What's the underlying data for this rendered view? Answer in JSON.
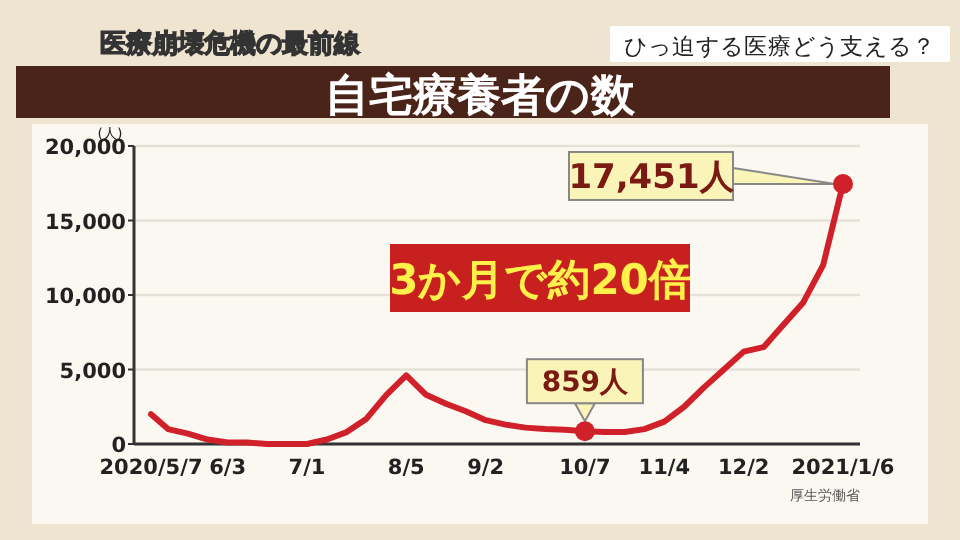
{
  "chart_data": {
    "type": "line",
    "title": "自宅療養者の数",
    "ylabel": "(人)",
    "annotations": [
      "医療崩壊危機の最前線",
      "ひっ迫する医療どう支える？",
      "3か月で約20倍",
      "厚生労働省",
      {
        "text": "17,451人",
        "x": "2021-01-06",
        "y": 17451
      },
      {
        "text": "859人",
        "x": "2020-10-07",
        "y": 859
      }
    ],
    "x": [
      "2020-05-07",
      "2020-05-13",
      "2020-05-20",
      "2020-05-27",
      "2020-06-03",
      "2020-06-10",
      "2020-06-17",
      "2020-06-24",
      "2020-07-01",
      "2020-07-08",
      "2020-07-15",
      "2020-07-22",
      "2020-07-29",
      "2020-08-05",
      "2020-08-12",
      "2020-08-19",
      "2020-08-26",
      "2020-09-02",
      "2020-09-09",
      "2020-09-16",
      "2020-09-23",
      "2020-09-30",
      "2020-10-07",
      "2020-10-14",
      "2020-10-21",
      "2020-10-28",
      "2020-11-04",
      "2020-11-11",
      "2020-11-18",
      "2020-11-25",
      "2020-12-02",
      "2020-12-09",
      "2020-12-16",
      "2020-12-23",
      "2020-12-30",
      "2021-01-06"
    ],
    "series": [
      {
        "color": "#d0202a",
        "values": [
          2000,
          1000,
          700,
          300,
          100,
          100,
          0,
          0,
          0,
          300,
          800,
          1700,
          3300,
          4600,
          3300,
          2700,
          2200,
          1600,
          1300,
          1100,
          1000,
          950,
          859,
          800,
          800,
          1000,
          1500,
          2500,
          3800,
          5000,
          6200,
          6500,
          8000,
          9500,
          12000,
          17451
        ]
      }
    ],
    "xlim": [
      "2020-05-01",
      "2021-01-12"
    ],
    "ylim": [
      0,
      20000
    ],
    "yticks": [
      {
        "value": 0,
        "label": "0"
      },
      {
        "value": 5000,
        "label": "5,000"
      },
      {
        "value": 10000,
        "label": "10,000"
      },
      {
        "value": 15000,
        "label": "15,000"
      },
      {
        "value": 20000,
        "label": "20,000"
      }
    ],
    "xticks": [
      {
        "value": "2020-05-07",
        "label": "2020/5/7"
      },
      {
        "value": "2020-06-03",
        "label": "6/3"
      },
      {
        "value": "2020-07-01",
        "label": "7/1"
      },
      {
        "value": "2020-08-05",
        "label": "8/5"
      },
      {
        "value": "2020-09-02",
        "label": "9/2"
      },
      {
        "value": "2020-10-07",
        "label": "10/7"
      },
      {
        "value": "2020-11-04",
        "label": "11/4"
      },
      {
        "value": "2020-12-02",
        "label": "12/2"
      },
      {
        "value": "2021-01-06",
        "label": "2021/1/6"
      }
    ],
    "grid": "y",
    "marker": "none",
    "line_style": "solid"
  }
}
